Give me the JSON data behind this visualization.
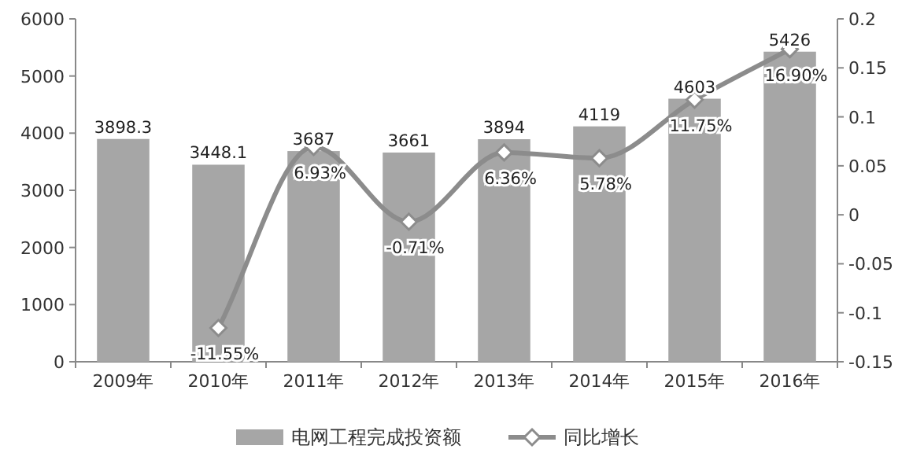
{
  "chart_data": {
    "type": "bar",
    "categories": [
      "2009年",
      "2010年",
      "2011年",
      "2012年",
      "2013年",
      "2014年",
      "2015年",
      "2016年"
    ],
    "series": [
      {
        "name": "电网工程完成投资额",
        "color": "#a6a6a6",
        "values": [
          3898.3,
          3448.1,
          3687,
          3661,
          3894,
          4119,
          4603,
          5426
        ],
        "value_labels": [
          "3898.3",
          "3448.1",
          "3687",
          "3661",
          "3894",
          "4119",
          "4603",
          "5426"
        ]
      },
      {
        "name": "同比增长",
        "type": "line",
        "axis": "y2",
        "color": "#8c8c8c",
        "marker": "diamond",
        "values": [
          null,
          -0.1155,
          0.0693,
          -0.0071,
          0.0636,
          0.0578,
          0.1175,
          0.169
        ],
        "value_labels": [
          null,
          "-11.55%",
          "6.93%",
          "-0.71%",
          "6.36%",
          "5.78%",
          "11.75%",
          "16.90%"
        ]
      }
    ],
    "ylim": [
      0,
      6000
    ],
    "yticks": [
      0,
      1000,
      2000,
      3000,
      4000,
      5000,
      6000
    ],
    "y2lim": [
      -0.15,
      0.2
    ],
    "y2ticks": [
      -0.15,
      -0.1,
      -0.05,
      0,
      0.05,
      0.1,
      0.15,
      0.2
    ],
    "legend": "bottom",
    "grid": false
  }
}
